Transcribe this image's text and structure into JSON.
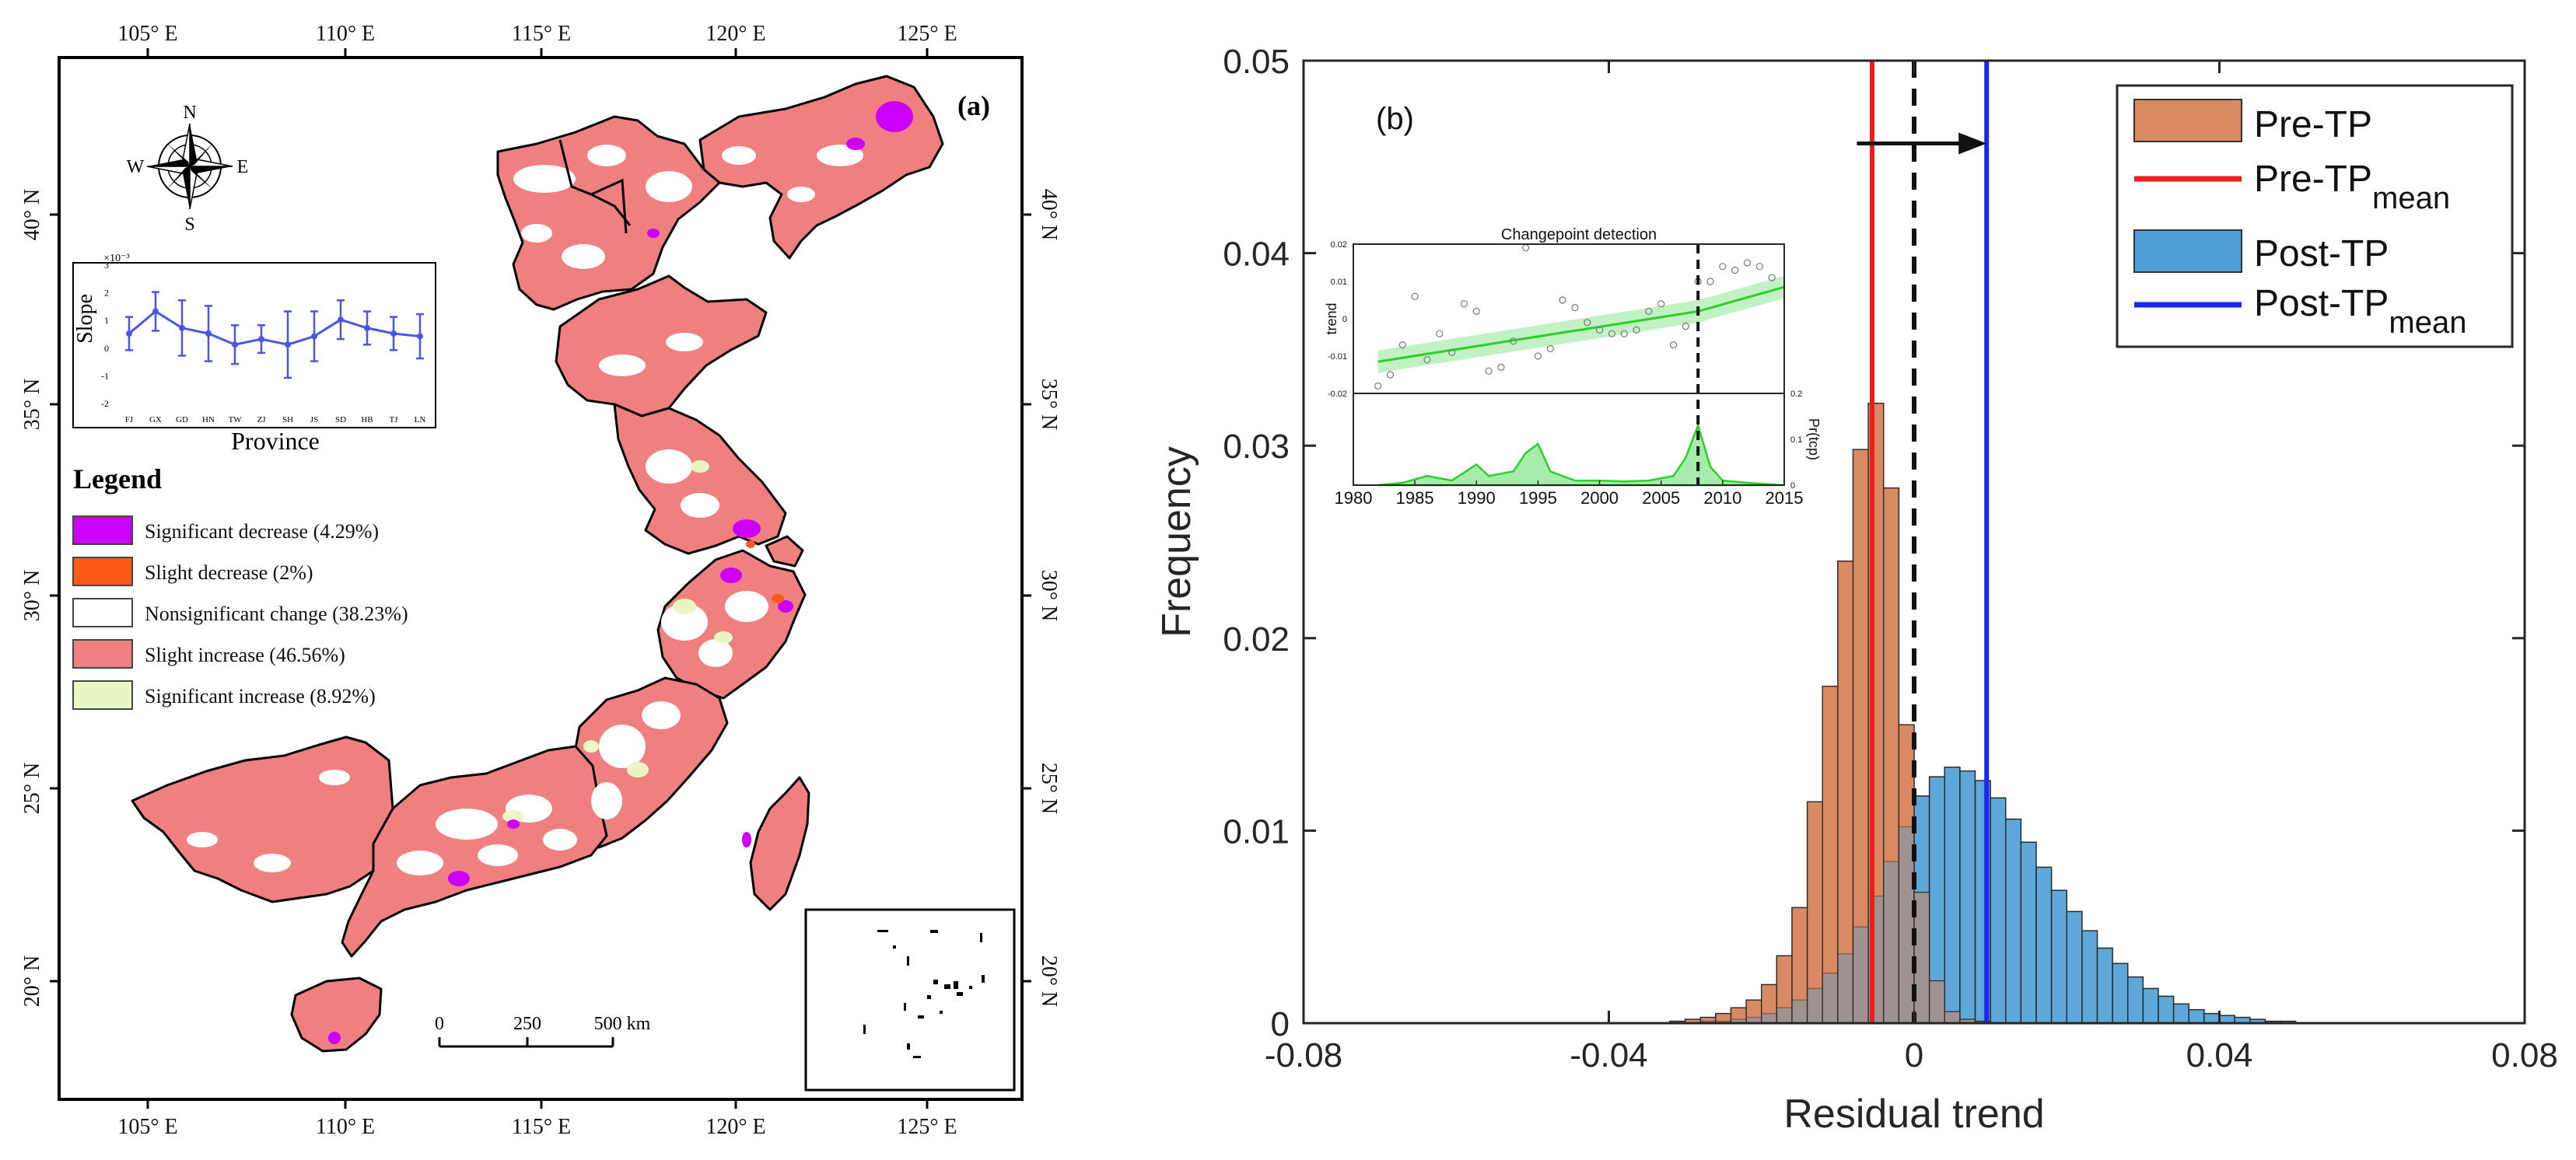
{
  "map_panel": {
    "panel_label": "(a)",
    "lon_ticks": [
      "105° E",
      "110° E",
      "115° E",
      "120° E",
      "125° E"
    ],
    "lat_ticks": [
      "40° N",
      "35° N",
      "30° N",
      "25° N",
      "20° N"
    ],
    "compass": {
      "n": "N",
      "s": "S",
      "e": "E",
      "w": "W"
    },
    "scale_bar": {
      "labels": [
        "0",
        "250",
        "500 km"
      ]
    },
    "legend": {
      "title": "Legend",
      "items": [
        {
          "label": "Significant decrease (4.29%)",
          "color": "#cc00ff"
        },
        {
          "label": "Slight decrease (2%)",
          "color": "#ff5a1a"
        },
        {
          "label": "Nonsignificant change (38.23%)",
          "color": "#ffffff"
        },
        {
          "label": "Slight increase (46.56%)",
          "color": "#f08080"
        },
        {
          "label": "Significant increase (8.92%)",
          "color": "#e8f7c4"
        }
      ]
    },
    "colors": {
      "land": "#f08080",
      "white_patch": "#ffffff",
      "purple": "#cc00ff",
      "orange": "#ff5a1a",
      "yellowgreen": "#e8f7c4"
    }
  },
  "slope_inset": {
    "ylabel": "Slope",
    "xlabel": "Province",
    "exponent_label": "×10⁻³",
    "y_ticks": [
      "3",
      "2",
      "1",
      "0",
      "-1",
      "-2"
    ],
    "provinces": [
      "FJ",
      "GX",
      "GD",
      "HN",
      "TW",
      "ZJ",
      "SH",
      "JS",
      "SD",
      "HB",
      "TJ",
      "LN"
    ],
    "values": [
      0.5,
      1.3,
      0.7,
      0.5,
      0.1,
      0.3,
      0.1,
      0.4,
      1.0,
      0.7,
      0.5,
      0.4
    ],
    "errors": [
      0.6,
      0.7,
      1.0,
      1.0,
      0.7,
      0.5,
      1.2,
      0.9,
      0.7,
      0.6,
      0.6,
      0.8
    ],
    "ylim": [
      -2,
      3
    ],
    "color": "#4b55e6"
  },
  "chart_data": {
    "type": "bar",
    "panel_label": "(b)",
    "xlabel": "Residual trend",
    "ylabel": "Frequency",
    "xlim": [
      -0.08,
      0.08
    ],
    "ylim": [
      0,
      0.05
    ],
    "x_ticks": [
      "-0.08",
      "-0.04",
      "0",
      "0.04",
      "0.08"
    ],
    "x_tick_values": [
      -0.08,
      -0.04,
      0,
      0.04,
      0.08
    ],
    "y_ticks": [
      "0",
      "0.01",
      "0.02",
      "0.03",
      "0.04",
      "0.05"
    ],
    "y_tick_values": [
      0,
      0.01,
      0.02,
      0.03,
      0.04,
      0.05
    ],
    "bin_width": 0.002,
    "series": [
      {
        "name": "Pre-TP",
        "color": "#d98a62",
        "bin_start": -0.032,
        "values": [
          0.0001,
          0.0002,
          0.0003,
          0.0005,
          0.0008,
          0.0012,
          0.002,
          0.0035,
          0.006,
          0.0115,
          0.0175,
          0.024,
          0.0298,
          0.0322,
          0.0278,
          0.0155,
          0.0068,
          0.0022,
          0.0006,
          0.0002,
          0.0001
        ],
        "mean": -0.0055,
        "mean_color": "#ee1c1c",
        "mean_label": "Pre-TP",
        "mean_label_sub": "mean"
      },
      {
        "name": "Post-TP",
        "color": "#4f9fd6",
        "bin_start": -0.028,
        "values": [
          0.0001,
          0.0001,
          0.0002,
          0.0003,
          0.0005,
          0.0008,
          0.0012,
          0.0018,
          0.0026,
          0.0036,
          0.005,
          0.0066,
          0.0084,
          0.0102,
          0.0118,
          0.0128,
          0.0133,
          0.0131,
          0.0126,
          0.0117,
          0.0106,
          0.0094,
          0.0081,
          0.0069,
          0.0058,
          0.0048,
          0.0039,
          0.0031,
          0.0024,
          0.0018,
          0.0014,
          0.001,
          0.0007,
          0.0005,
          0.0004,
          0.0003,
          0.0002,
          0.0001,
          0.0001
        ],
        "mean": 0.0095,
        "mean_color": "#1c24ee",
        "mean_label": "Post-TP",
        "mean_label_sub": "mean"
      }
    ],
    "zero_line": 0,
    "arrow": {
      "from": -0.0075,
      "to": 0.0095,
      "y": 0.0457
    },
    "inset": {
      "title": "Changepoint detection",
      "top_ylabel": "trend",
      "top_y_ticks": [
        "0.02",
        "0.01",
        "0",
        "-0.01",
        "-0.02"
      ],
      "top_y_tick_values": [
        0.02,
        0.01,
        0,
        -0.01,
        -0.02
      ],
      "bottom_ylabel": "Pr(tcp)",
      "bottom_y_ticks": [
        "0.2",
        "0.1",
        "0"
      ],
      "bottom_y_tick_values": [
        0.2,
        0.1,
        0
      ],
      "x_ticks": [
        "1980",
        "1985",
        "1990",
        "1995",
        "2000",
        "2005",
        "2010",
        "2015"
      ],
      "x_tick_values": [
        1980,
        1985,
        1990,
        1995,
        2000,
        2005,
        2010,
        2015
      ],
      "xlim": [
        1980,
        2015
      ],
      "changepoint": 2008,
      "trend_line": [
        {
          "x": 1982,
          "y": -0.0115
        },
        {
          "x": 2008,
          "y": 0.002
        },
        {
          "x": 2015,
          "y": 0.0085
        }
      ],
      "points": [
        {
          "x": 1982,
          "y": -0.018
        },
        {
          "x": 1983,
          "y": -0.015
        },
        {
          "x": 1984,
          "y": -0.007
        },
        {
          "x": 1985,
          "y": 0.006
        },
        {
          "x": 1986,
          "y": -0.011
        },
        {
          "x": 1987,
          "y": -0.004
        },
        {
          "x": 1988,
          "y": -0.009
        },
        {
          "x": 1989,
          "y": 0.004
        },
        {
          "x": 1990,
          "y": 0.002
        },
        {
          "x": 1991,
          "y": -0.014
        },
        {
          "x": 1992,
          "y": -0.013
        },
        {
          "x": 1993,
          "y": -0.006
        },
        {
          "x": 1994,
          "y": 0.019
        },
        {
          "x": 1995,
          "y": -0.01
        },
        {
          "x": 1996,
          "y": -0.008
        },
        {
          "x": 1997,
          "y": 0.005
        },
        {
          "x": 1998,
          "y": 0.003
        },
        {
          "x": 1999,
          "y": -0.001
        },
        {
          "x": 2000,
          "y": -0.003
        },
        {
          "x": 2001,
          "y": -0.004
        },
        {
          "x": 2002,
          "y": -0.004
        },
        {
          "x": 2003,
          "y": -0.003
        },
        {
          "x": 2004,
          "y": 0.002
        },
        {
          "x": 2005,
          "y": 0.004
        },
        {
          "x": 2006,
          "y": -0.007
        },
        {
          "x": 2007,
          "y": -0.002
        },
        {
          "x": 2008,
          "y": 0.01
        },
        {
          "x": 2009,
          "y": 0.01
        },
        {
          "x": 2010,
          "y": 0.014
        },
        {
          "x": 2011,
          "y": 0.013
        },
        {
          "x": 2012,
          "y": 0.015
        },
        {
          "x": 2013,
          "y": 0.014
        },
        {
          "x": 2014,
          "y": 0.011
        }
      ],
      "probability": [
        {
          "x": 1982,
          "y": 0
        },
        {
          "x": 1984,
          "y": 0.005
        },
        {
          "x": 1986,
          "y": 0.02
        },
        {
          "x": 1988,
          "y": 0.01
        },
        {
          "x": 1990,
          "y": 0.045
        },
        {
          "x": 1991,
          "y": 0.02
        },
        {
          "x": 1993,
          "y": 0.03
        },
        {
          "x": 1994,
          "y": 0.07
        },
        {
          "x": 1995,
          "y": 0.09
        },
        {
          "x": 1996,
          "y": 0.03
        },
        {
          "x": 1998,
          "y": 0.01
        },
        {
          "x": 2000,
          "y": 0.01
        },
        {
          "x": 2002,
          "y": 0.008
        },
        {
          "x": 2004,
          "y": 0.01
        },
        {
          "x": 2006,
          "y": 0.02
        },
        {
          "x": 2007,
          "y": 0.06
        },
        {
          "x": 2008,
          "y": 0.13
        },
        {
          "x": 2009,
          "y": 0.04
        },
        {
          "x": 2010,
          "y": 0.01
        },
        {
          "x": 2012,
          "y": 0.005
        },
        {
          "x": 2015,
          "y": 0
        }
      ],
      "line_color": "#2bd02b",
      "band_color": "#a8ecab"
    }
  }
}
